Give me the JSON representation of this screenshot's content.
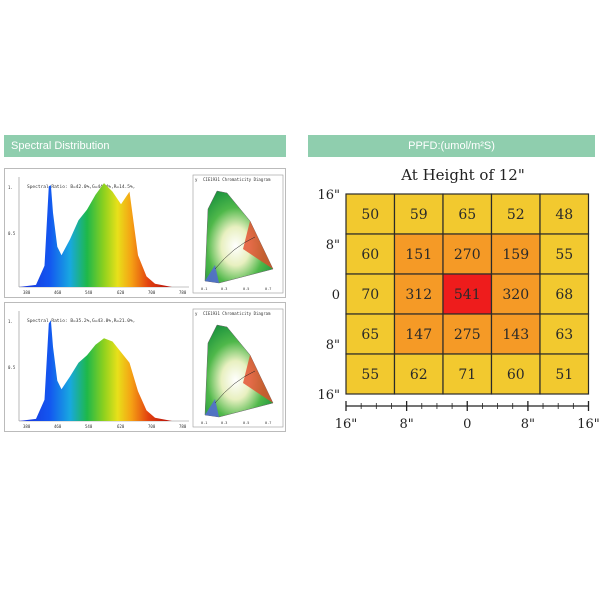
{
  "left_section": {
    "banner": "Spectral Distribution",
    "spectra": [
      {
        "ratio_text": "Spectral Ratio: B=42.0%,G=44.4%,R=14.5%,",
        "x_ticks": [
          "380",
          "460",
          "540",
          "620",
          "700",
          "780"
        ],
        "y_ticks": [
          "1.",
          "0.5"
        ],
        "cie_title": "CIE1931 Chromaticity Diagram",
        "cie_y_label": "y",
        "cie_x_ticks": [
          "0.1",
          "0.3",
          "0.5",
          "0.7"
        ]
      },
      {
        "ratio_text": "Spectral Ratio: B=35.2%,G=43.8%,R=21.0%,",
        "x_ticks": [
          "380",
          "460",
          "540",
          "620",
          "700",
          "780"
        ],
        "y_ticks": [
          "1.",
          "0.5"
        ],
        "cie_title": "CIE1931 Chromaticity Diagram",
        "cie_y_label": "y",
        "cie_x_ticks": [
          "0.1",
          "0.3",
          "0.5",
          "0.7"
        ]
      }
    ]
  },
  "right_section": {
    "banner": "PPFD:(umol/m²S)"
  },
  "chart_data": [
    {
      "type": "line",
      "x": [
        380,
        420,
        440,
        450,
        455,
        460,
        470,
        480,
        500,
        520,
        540,
        560,
        580,
        600,
        620,
        640,
        660,
        680,
        700,
        740,
        780
      ],
      "values": [
        0.0,
        0.02,
        0.2,
        0.95,
        0.96,
        0.7,
        0.38,
        0.3,
        0.45,
        0.63,
        0.73,
        0.87,
        0.98,
        0.9,
        0.78,
        0.9,
        0.3,
        0.1,
        0.03,
        0.0,
        0.0
      ],
      "xlim": [
        380,
        780
      ],
      "ylim": [
        0,
        1
      ]
    },
    {
      "type": "line",
      "x": [
        380,
        420,
        440,
        450,
        455,
        460,
        470,
        480,
        500,
        520,
        540,
        560,
        580,
        600,
        620,
        640,
        660,
        680,
        700,
        740,
        780
      ],
      "values": [
        0.0,
        0.02,
        0.2,
        0.92,
        0.95,
        0.7,
        0.38,
        0.3,
        0.42,
        0.55,
        0.62,
        0.72,
        0.78,
        0.75,
        0.65,
        0.55,
        0.28,
        0.1,
        0.03,
        0.0,
        0.0
      ],
      "xlim": [
        380,
        780
      ],
      "ylim": [
        0,
        1
      ]
    },
    {
      "type": "heatmap",
      "title": "At Height of 12\"",
      "rows": [
        [
          50,
          59,
          65,
          52,
          48
        ],
        [
          60,
          151,
          270,
          159,
          55
        ],
        [
          70,
          312,
          541,
          320,
          68
        ],
        [
          65,
          147,
          275,
          143,
          63
        ],
        [
          55,
          62,
          71,
          60,
          51
        ]
      ],
      "x_ticks": [
        "16\"",
        "8\"",
        "0",
        "8\"",
        "16\""
      ],
      "y_ticks": [
        "16\"",
        "8\"",
        "0",
        "8\"",
        "16\""
      ],
      "colors": {
        "low": "#f2c92f",
        "mid": "#f59a26",
        "high": "#ee1c1c"
      },
      "thresholds": [
        100,
        400
      ]
    }
  ]
}
